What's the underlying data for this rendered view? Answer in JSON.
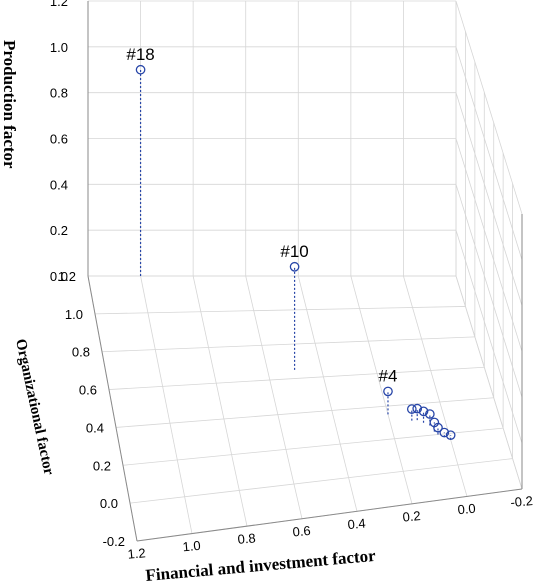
{
  "chart_data": {
    "type": "scatter",
    "projection": "3d",
    "axes": {
      "x": {
        "label": "Financial and investment factor",
        "ticks": [
          "1.2",
          "1.0",
          "0.8",
          "0.6",
          "0.4",
          "0.2",
          "0.0",
          "-0.2"
        ],
        "range": [
          -0.2,
          1.2
        ],
        "direction": "decreasing"
      },
      "y": {
        "label": "Organizational factor",
        "ticks": [
          "1.2",
          "1.0",
          "0.8",
          "0.6",
          "0.4",
          "0.2",
          "0.0",
          "-0.2"
        ],
        "range": [
          -0.2,
          1.2
        ]
      },
      "z": {
        "label": "Production factor",
        "ticks": [
          "1.2",
          "1.0",
          "0.8",
          "0.6",
          "0.4",
          "0.2",
          "0.0"
        ],
        "range": [
          0.0,
          1.2
        ]
      }
    },
    "grid": true,
    "points": [
      {
        "label": "#18",
        "x": 1.0,
        "y": 1.2,
        "z": 0.9
      },
      {
        "label": "#10",
        "x": 0.5,
        "y": 0.65,
        "z": 0.45
      },
      {
        "label": "#4",
        "x": 0.2,
        "y": 0.35,
        "z": 0.1
      },
      {
        "label": "",
        "x": 0.12,
        "y": 0.3,
        "z": 0.05
      },
      {
        "label": "",
        "x": 0.1,
        "y": 0.3,
        "z": 0.05
      },
      {
        "label": "",
        "x": 0.08,
        "y": 0.28,
        "z": 0.05
      },
      {
        "label": "",
        "x": 0.06,
        "y": 0.26,
        "z": 0.05
      },
      {
        "label": "",
        "x": 0.05,
        "y": 0.22,
        "z": 0.04
      },
      {
        "label": "",
        "x": 0.04,
        "y": 0.2,
        "z": 0.03
      },
      {
        "label": "",
        "x": 0.02,
        "y": 0.18,
        "z": 0.02
      },
      {
        "label": "",
        "x": 0.0,
        "y": 0.16,
        "z": 0.02
      }
    ]
  }
}
